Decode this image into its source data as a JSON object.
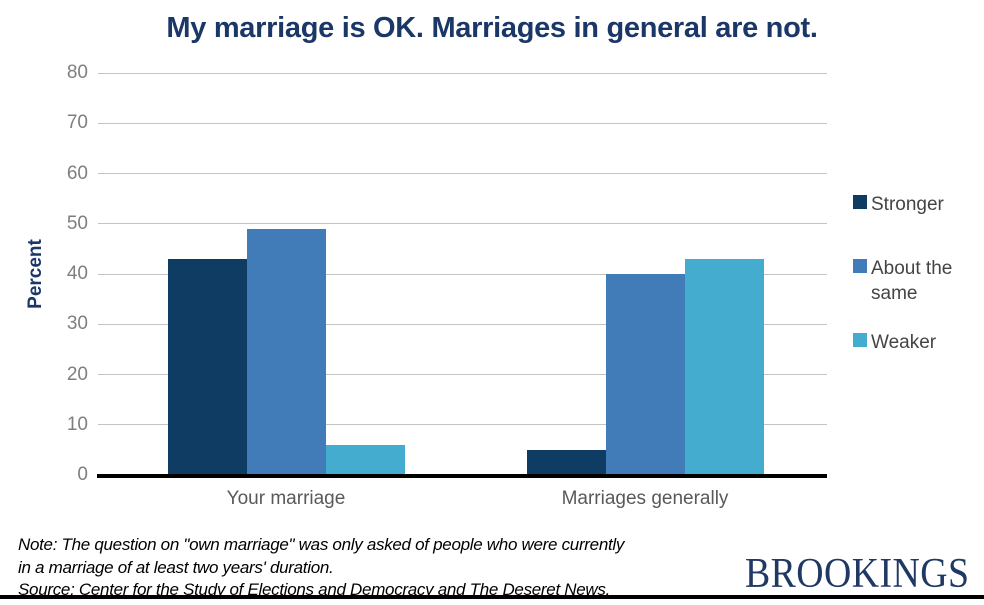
{
  "title": "My marriage is OK. Marriages in general are not.",
  "axes": {
    "y_title": "Percent"
  },
  "note": {
    "lines": [
      "Note: The question on \"own marriage\" was only asked of people who were currently",
      "in a marriage of at least two years' duration.",
      "Source: Center for the Study of Elections and Democracy and The Deseret News."
    ]
  },
  "logo": {
    "text": "BROOKINGS"
  },
  "colors": {
    "title_navy": "#1B3768",
    "stronger": "#0E3C63",
    "about_the_same": "#417CB8",
    "weaker": "#44ACCF",
    "gridline": "#C4C4C4",
    "tick_text": "#7F7F7F",
    "category_text": "#595959",
    "logo_navy": "#1F3864",
    "axis_line": "#000000"
  },
  "chart_data": {
    "type": "bar",
    "categories": [
      "Your marriage",
      "Marriages generally"
    ],
    "series": [
      {
        "name": "Stronger",
        "color": "#0E3C63",
        "values": [
          43,
          5
        ]
      },
      {
        "name": "About the same",
        "color": "#417CB8",
        "values": [
          49,
          40
        ]
      },
      {
        "name": "Weaker",
        "color": "#44ACCF",
        "values": [
          6,
          43
        ]
      }
    ],
    "title": "My marriage is OK. Marriages in general are not.",
    "xlabel": "",
    "ylabel": "Percent",
    "ylim": [
      0,
      80
    ],
    "ytick_step": 10,
    "grid": true,
    "legend_position": "right"
  }
}
